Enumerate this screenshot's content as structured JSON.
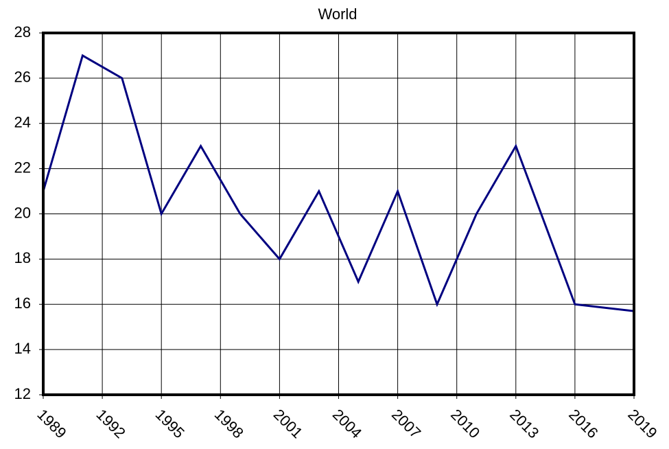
{
  "chart_data": {
    "type": "line",
    "title": "World",
    "x": [
      1989,
      1991,
      1993,
      1995,
      1997,
      1999,
      2001,
      2003,
      2005,
      2007,
      2009,
      2011,
      2013,
      2016,
      2019
    ],
    "series": [
      {
        "name": "World",
        "color": "#000080",
        "values": [
          21,
          27,
          26,
          20,
          23,
          20,
          18,
          21,
          17,
          21,
          16,
          20,
          23,
          16,
          15.7
        ]
      }
    ],
    "xlim": [
      1989,
      2019
    ],
    "xticks": [
      1989,
      1992,
      1995,
      1998,
      2001,
      2004,
      2007,
      2010,
      2013,
      2016,
      2019
    ],
    "ylim": [
      12,
      28
    ],
    "yticks": [
      12,
      14,
      16,
      18,
      20,
      22,
      24,
      26,
      28
    ],
    "grid": true
  }
}
